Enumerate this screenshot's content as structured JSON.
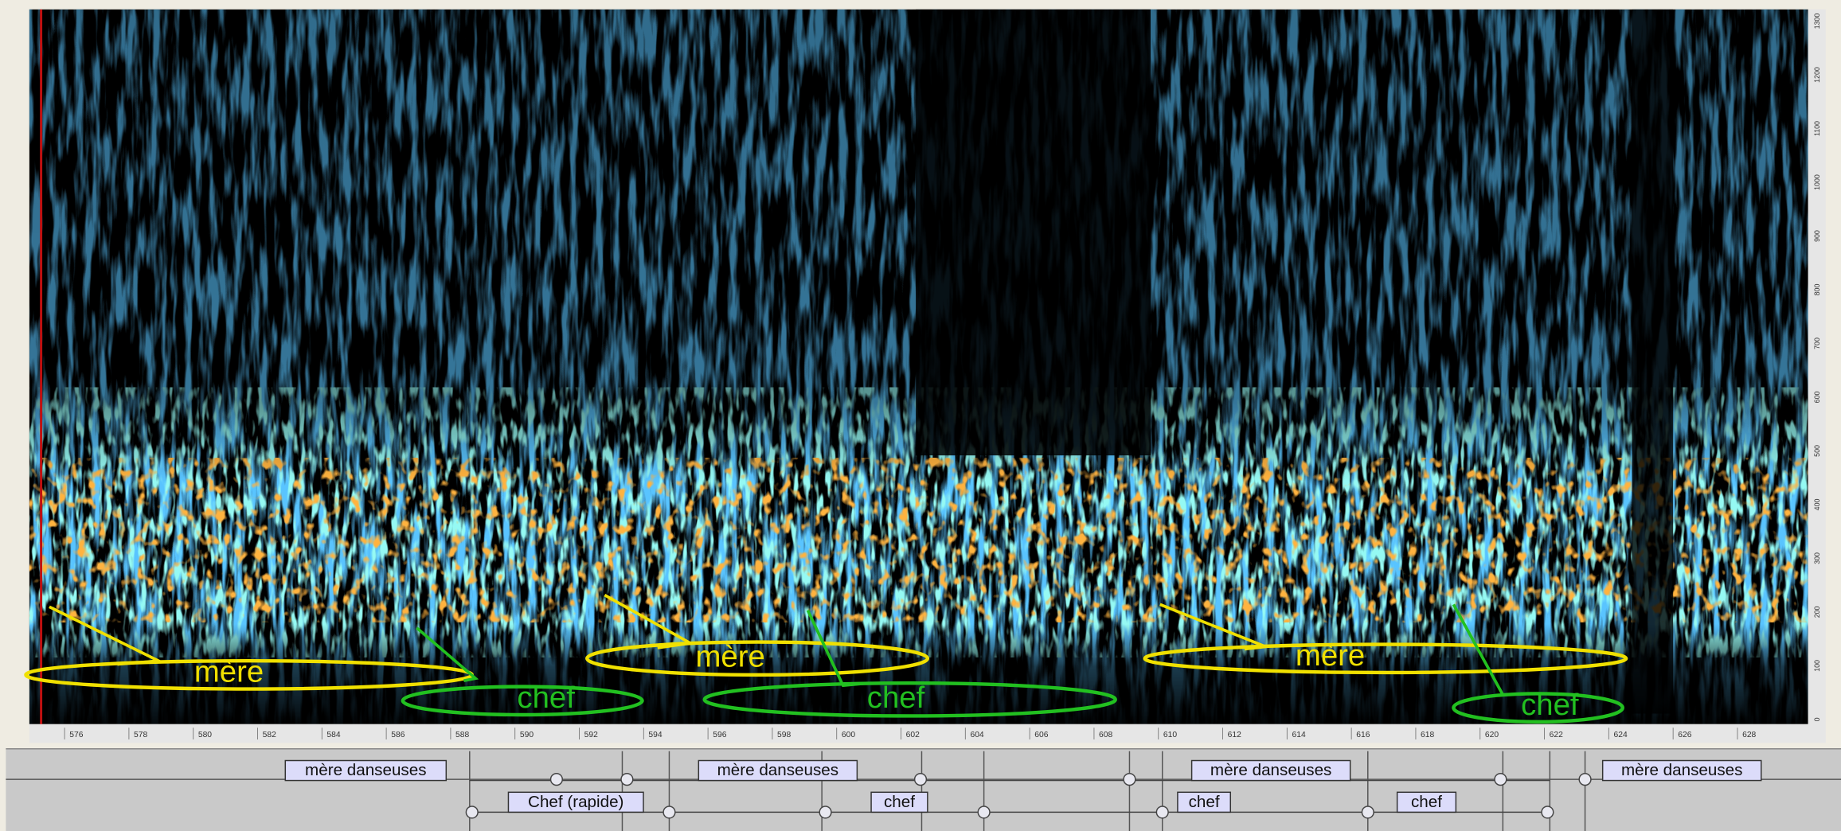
{
  "annotations": [
    {
      "label": "mère"
    },
    {
      "label": "chef"
    },
    {
      "label": "mère"
    },
    {
      "label": "chef"
    },
    {
      "label": "mère"
    },
    {
      "label": "chef"
    }
  ],
  "time_axis": {
    "ticks": [
      576,
      578,
      580,
      582,
      584,
      586,
      588,
      590,
      592,
      594,
      596,
      598,
      600,
      602,
      604,
      606,
      608,
      610,
      612,
      614,
      616,
      618,
      620,
      622,
      624,
      626,
      628
    ]
  },
  "frequency_axis": {
    "ticks": [
      1300,
      1200,
      1100,
      1000,
      900,
      800,
      700,
      600,
      500,
      400,
      300,
      200,
      100,
      0
    ]
  },
  "timeline": {
    "row1": [
      "mère danseuses",
      "mère danseuses",
      "mère danseuses",
      "mère danseuses"
    ],
    "row2": [
      "Chef (rapide)",
      "chef",
      "chef",
      "chef"
    ]
  }
}
